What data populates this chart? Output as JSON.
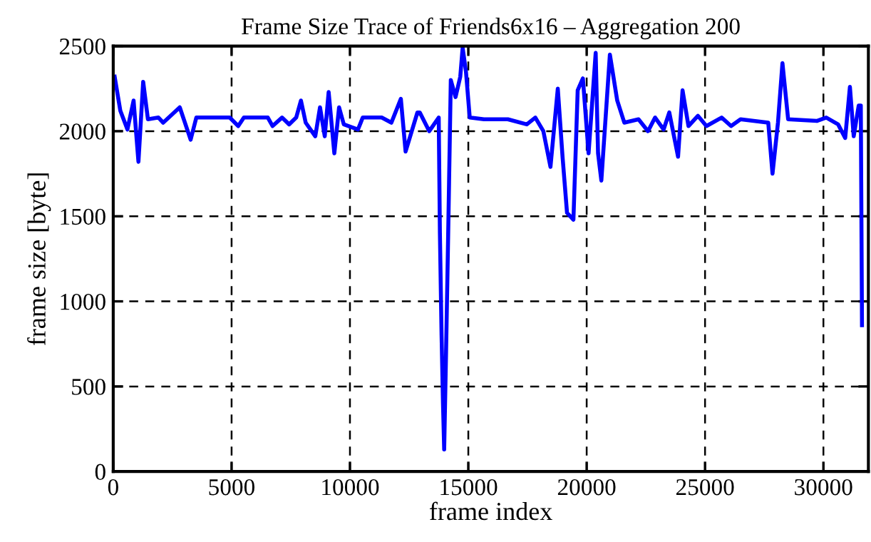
{
  "chart_data": {
    "type": "line",
    "title": "Frame Size Trace of Friends6x16 – Aggregation 200",
    "xlabel": "frame index",
    "ylabel": "frame size [byte]",
    "series": [
      {
        "color": "#0000ff",
        "x": [
          60,
          300,
          600,
          860,
          1065,
          1265,
          1465,
          1910,
          2110,
          2810,
          3270,
          3510,
          4320,
          4920,
          5280,
          5520,
          6530,
          6730,
          7130,
          7430,
          7730,
          7930,
          8130,
          8535,
          8735,
          8935,
          9100,
          9340,
          9540,
          9740,
          10340,
          10540,
          11340,
          11750,
          12150,
          12350,
          12850,
          12950,
          13350,
          13750,
          13800,
          13870,
          13930,
          13980,
          14060,
          14150,
          14260,
          14460,
          14660,
          14760,
          14900,
          15060,
          15660,
          16670,
          17470,
          17830,
          18170,
          18470,
          18780,
          18980,
          19170,
          19440,
          19620,
          19840,
          20080,
          20380,
          20480,
          20620,
          20980,
          21290,
          21590,
          22190,
          22590,
          22890,
          23250,
          23490,
          23860,
          24050,
          24300,
          24700,
          25060,
          25700,
          26100,
          26500,
          27670,
          27850,
          28080,
          28270,
          28510,
          29720,
          30120,
          30620,
          30920,
          31120,
          31280,
          31490,
          31580,
          31630
        ],
        "values": [
          2320,
          2120,
          2010,
          2180,
          1820,
          2290,
          2070,
          2080,
          2050,
          2140,
          1950,
          2080,
          2080,
          2080,
          2030,
          2080,
          2080,
          2030,
          2080,
          2040,
          2080,
          2180,
          2050,
          1970,
          2140,
          1970,
          2230,
          1870,
          2140,
          2040,
          2010,
          2080,
          2080,
          2050,
          2190,
          1880,
          2110,
          2110,
          2000,
          2080,
          1400,
          800,
          400,
          130,
          700,
          1400,
          2300,
          2200,
          2320,
          2490,
          2350,
          2080,
          2070,
          2070,
          2040,
          2080,
          2000,
          1790,
          2250,
          1850,
          1520,
          1480,
          2240,
          2310,
          1870,
          2460,
          1870,
          1710,
          2450,
          2180,
          2050,
          2070,
          2000,
          2080,
          2010,
          2110,
          1850,
          2240,
          2030,
          2090,
          2030,
          2080,
          2030,
          2070,
          2050,
          1750,
          2050,
          2400,
          2070,
          2060,
          2080,
          2040,
          1960,
          2260,
          1970,
          2150,
          2150,
          860
        ]
      }
    ],
    "xlim": [
      0,
      31900
    ],
    "ylim": [
      0,
      2500
    ],
    "xticks": [
      0,
      5000,
      10000,
      15000,
      20000,
      25000,
      30000
    ],
    "yticks": [
      0,
      500,
      1000,
      1500,
      2000,
      2500
    ],
    "grid": true,
    "line_style": "solid",
    "marker": "none"
  }
}
